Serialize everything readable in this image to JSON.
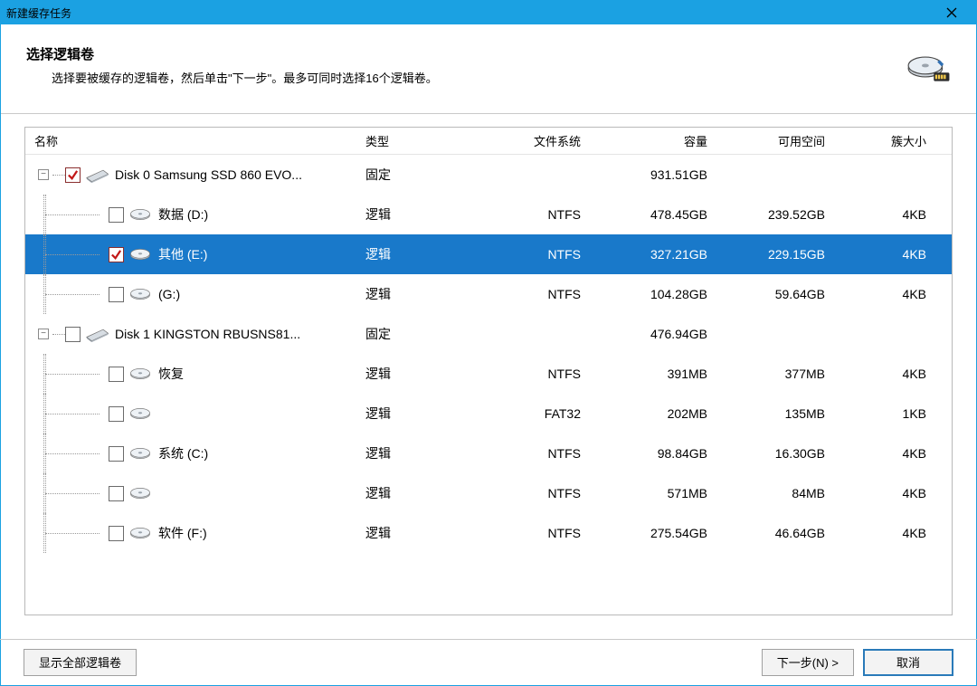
{
  "window": {
    "title": "新建缓存任务"
  },
  "header": {
    "title": "选择逻辑卷",
    "subtitle": "选择要被缓存的逻辑卷，然后单击\"下一步\"。最多可同时选择16个逻辑卷。"
  },
  "columns": {
    "name": "名称",
    "type": "类型",
    "fs": "文件系统",
    "capacity": "容量",
    "free": "可用空间",
    "cluster": "簇大小"
  },
  "type_labels": {
    "fixed": "固定",
    "logical": "逻辑"
  },
  "tree": [
    {
      "kind": "disk",
      "expanded": true,
      "checked": true,
      "name": "Disk 0 Samsung SSD 860 EVO...",
      "type": "fixed",
      "fs": "",
      "capacity": "931.51GB",
      "free": "",
      "cluster": "",
      "children": [
        {
          "kind": "vol",
          "checked": false,
          "name": "数据 (D:)",
          "type": "logical",
          "fs": "NTFS",
          "capacity": "478.45GB",
          "free": "239.52GB",
          "cluster": "4KB"
        },
        {
          "kind": "vol",
          "checked": true,
          "selected": true,
          "name": "其他 (E:)",
          "type": "logical",
          "fs": "NTFS",
          "capacity": "327.21GB",
          "free": "229.15GB",
          "cluster": "4KB"
        },
        {
          "kind": "vol",
          "checked": false,
          "name": "(G:)",
          "type": "logical",
          "fs": "NTFS",
          "capacity": "104.28GB",
          "free": "59.64GB",
          "cluster": "4KB"
        }
      ]
    },
    {
      "kind": "disk",
      "expanded": true,
      "checked": false,
      "name": "Disk 1 KINGSTON RBUSNS81...",
      "type": "fixed",
      "fs": "",
      "capacity": "476.94GB",
      "free": "",
      "cluster": "",
      "children": [
        {
          "kind": "vol",
          "checked": false,
          "name": "恢复",
          "type": "logical",
          "fs": "NTFS",
          "capacity": "391MB",
          "free": "377MB",
          "cluster": "4KB"
        },
        {
          "kind": "vol",
          "checked": false,
          "name": "",
          "type": "logical",
          "fs": "FAT32",
          "capacity": "202MB",
          "free": "135MB",
          "cluster": "1KB"
        },
        {
          "kind": "vol",
          "checked": false,
          "name": "系统 (C:)",
          "type": "logical",
          "fs": "NTFS",
          "capacity": "98.84GB",
          "free": "16.30GB",
          "cluster": "4KB"
        },
        {
          "kind": "vol",
          "checked": false,
          "name": "",
          "type": "logical",
          "fs": "NTFS",
          "capacity": "571MB",
          "free": "84MB",
          "cluster": "4KB"
        },
        {
          "kind": "vol",
          "checked": false,
          "name": "软件 (F:)",
          "type": "logical",
          "fs": "NTFS",
          "capacity": "275.54GB",
          "free": "46.64GB",
          "cluster": "4KB"
        }
      ]
    }
  ],
  "buttons": {
    "show_all": "显示全部逻辑卷",
    "next": "下一步(N) >",
    "cancel": "取消"
  },
  "colors": {
    "titlebar": "#1ba1e2",
    "selected_row": "#1979ca",
    "border": "#b9b9b9"
  }
}
